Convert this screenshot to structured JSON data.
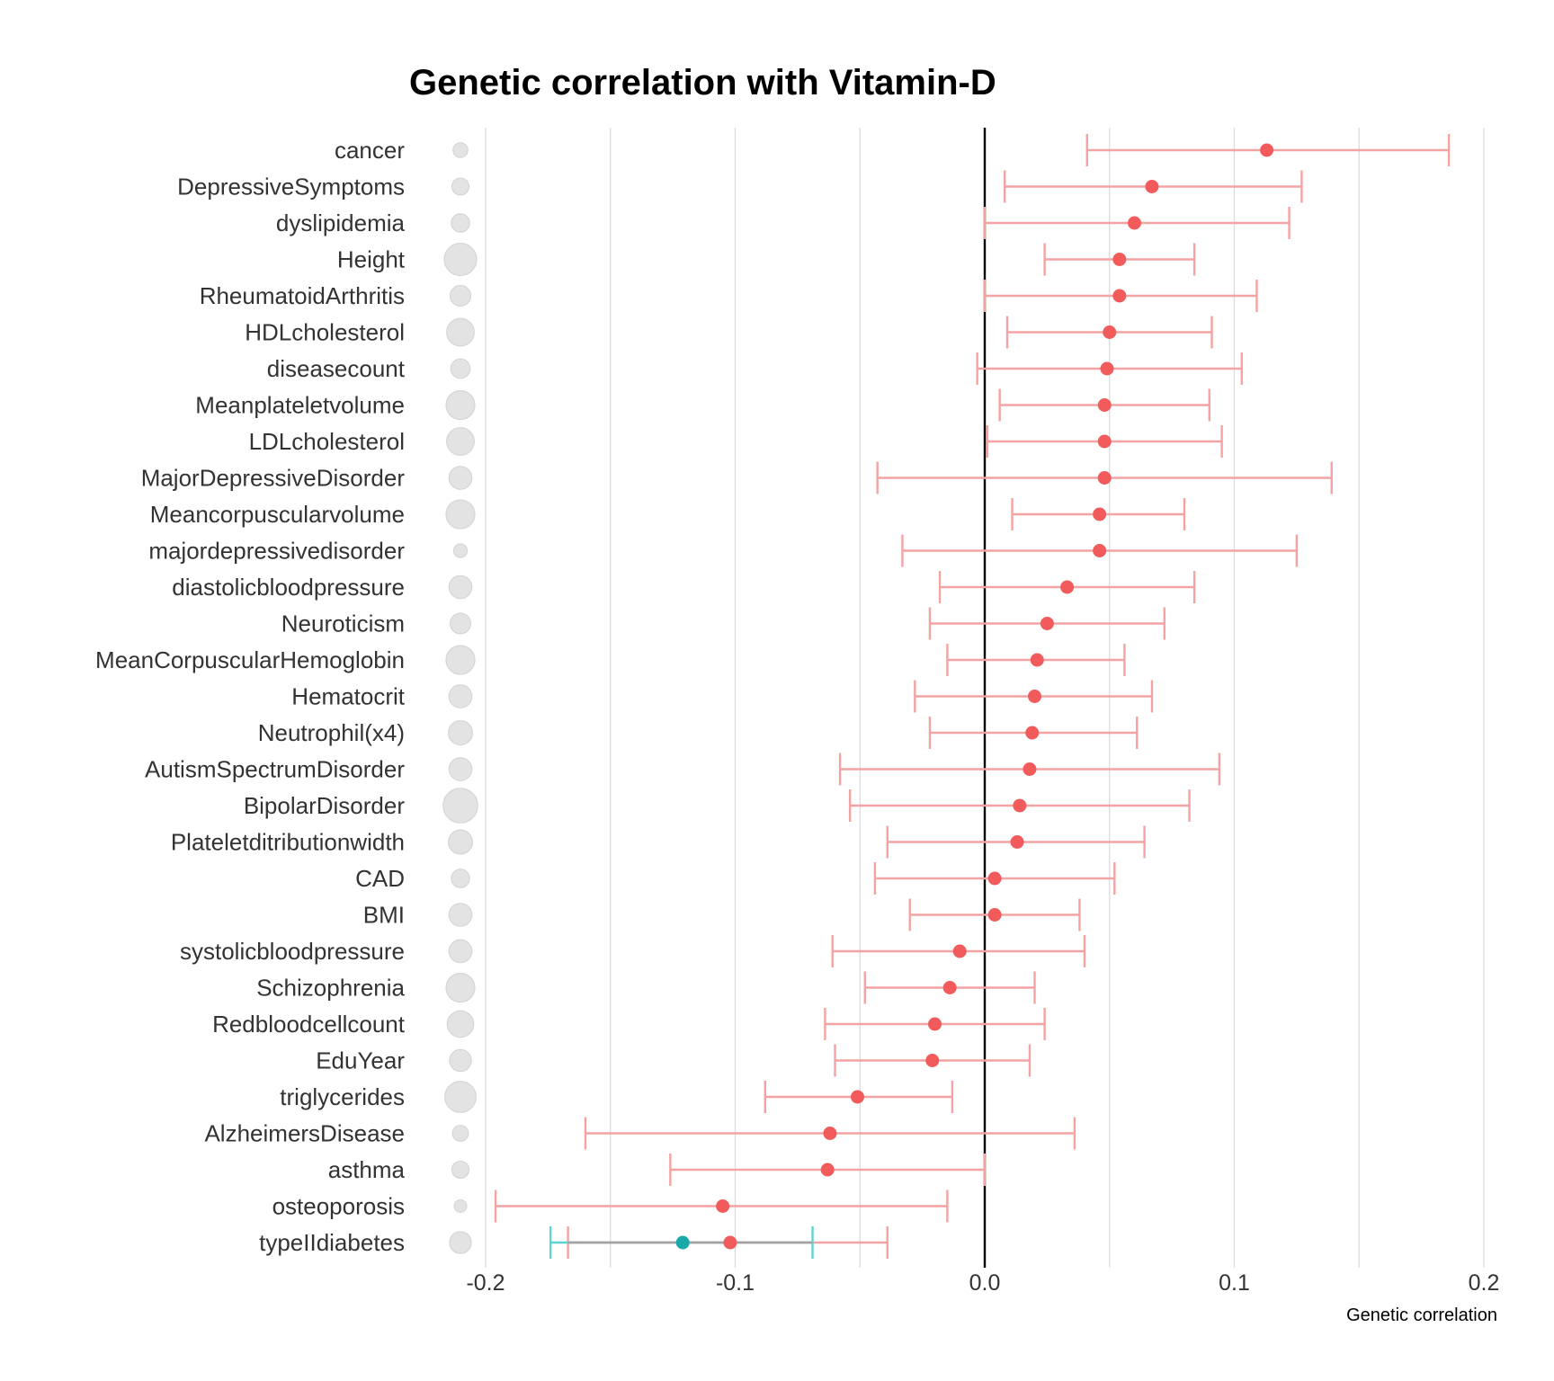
{
  "chart_data": {
    "type": "scatter",
    "title": "Genetic correlation with Vitamin-D",
    "xlabel": "Genetic correlation",
    "ylabel": "",
    "xlim": [
      -0.2,
      0.2
    ],
    "xticks": [
      -0.2,
      -0.1,
      0.0,
      0.1,
      0.2
    ],
    "xtick_labels": [
      "-0.2",
      "-0.1",
      "0.0",
      "0.1",
      "0.2"
    ],
    "grid": true,
    "point_color": "#f15b5b",
    "ci_color": "#f4a3a3",
    "highlight_point_color": "#19a9a9",
    "highlight_ci_color": "#5fd4d4",
    "size_marker_color": "#e3e3e3",
    "traits": [
      {
        "name": "cancer",
        "rg": 0.113,
        "lo": 0.041,
        "hi": 0.186,
        "size": 0.25
      },
      {
        "name": "DepressiveSymptoms",
        "rg": 0.067,
        "lo": 0.008,
        "hi": 0.127,
        "size": 0.35
      },
      {
        "name": "dyslipidemia",
        "rg": 0.06,
        "lo": 0.0,
        "hi": 0.122,
        "size": 0.4
      },
      {
        "name": "Height",
        "rg": 0.054,
        "lo": 0.024,
        "hi": 0.084,
        "size": 1.0
      },
      {
        "name": "RheumatoidArthritis",
        "rg": 0.054,
        "lo": 0.0,
        "hi": 0.109,
        "size": 0.5
      },
      {
        "name": "HDLcholesterol",
        "rg": 0.05,
        "lo": 0.009,
        "hi": 0.091,
        "size": 0.8
      },
      {
        "name": "diseasecount",
        "rg": 0.049,
        "lo": -0.003,
        "hi": 0.103,
        "size": 0.45
      },
      {
        "name": "Meanplateletvolume",
        "rg": 0.048,
        "lo": 0.006,
        "hi": 0.09,
        "size": 0.85
      },
      {
        "name": "LDLcholesterol",
        "rg": 0.048,
        "lo": 0.001,
        "hi": 0.095,
        "size": 0.8
      },
      {
        "name": "MajorDepressiveDisorder",
        "rg": 0.048,
        "lo": -0.043,
        "hi": 0.139,
        "size": 0.6
      },
      {
        "name": "Meancorpuscularvolume",
        "rg": 0.046,
        "lo": 0.011,
        "hi": 0.08,
        "size": 0.85
      },
      {
        "name": "majordepressivedisorder",
        "rg": 0.046,
        "lo": -0.033,
        "hi": 0.125,
        "size": 0.2
      },
      {
        "name": "diastolicbloodpressure",
        "rg": 0.033,
        "lo": -0.018,
        "hi": 0.084,
        "size": 0.6
      },
      {
        "name": "Neuroticism",
        "rg": 0.025,
        "lo": -0.022,
        "hi": 0.072,
        "size": 0.5
      },
      {
        "name": "MeanCorpuscularHemoglobin",
        "rg": 0.021,
        "lo": -0.015,
        "hi": 0.056,
        "size": 0.85
      },
      {
        "name": "Hematocrit",
        "rg": 0.02,
        "lo": -0.028,
        "hi": 0.067,
        "size": 0.6
      },
      {
        "name": "Neutrophil(x4)",
        "rg": 0.019,
        "lo": -0.022,
        "hi": 0.061,
        "size": 0.65
      },
      {
        "name": "AutismSpectrumDisorder",
        "rg": 0.018,
        "lo": -0.058,
        "hi": 0.094,
        "size": 0.6
      },
      {
        "name": "BipolarDisorder",
        "rg": 0.014,
        "lo": -0.054,
        "hi": 0.082,
        "size": 1.1
      },
      {
        "name": "Plateletditributionwidth",
        "rg": 0.013,
        "lo": -0.039,
        "hi": 0.064,
        "size": 0.65
      },
      {
        "name": "CAD",
        "rg": 0.004,
        "lo": -0.044,
        "hi": 0.052,
        "size": 0.4
      },
      {
        "name": "BMI",
        "rg": 0.004,
        "lo": -0.03,
        "hi": 0.038,
        "size": 0.6
      },
      {
        "name": "systolicbloodpressure",
        "rg": -0.01,
        "lo": -0.061,
        "hi": 0.04,
        "size": 0.6
      },
      {
        "name": "Schizophrenia",
        "rg": -0.014,
        "lo": -0.048,
        "hi": 0.02,
        "size": 0.85
      },
      {
        "name": "Redbloodcellcount",
        "rg": -0.02,
        "lo": -0.064,
        "hi": 0.024,
        "size": 0.75
      },
      {
        "name": "EduYear",
        "rg": -0.021,
        "lo": -0.06,
        "hi": 0.018,
        "size": 0.55
      },
      {
        "name": "triglycerides",
        "rg": -0.051,
        "lo": -0.088,
        "hi": -0.013,
        "size": 0.95
      },
      {
        "name": "AlzheimersDisease",
        "rg": -0.062,
        "lo": -0.16,
        "hi": 0.036,
        "size": 0.3
      },
      {
        "name": "asthma",
        "rg": -0.063,
        "lo": -0.126,
        "hi": 0.0,
        "size": 0.35
      },
      {
        "name": "osteoporosis",
        "rg": -0.105,
        "lo": -0.196,
        "hi": -0.015,
        "size": 0.15
      },
      {
        "name": "typeIIdiabetes",
        "rg": -0.102,
        "lo": -0.167,
        "hi": -0.039,
        "size": 0.55,
        "secondary": {
          "rg": -0.121,
          "lo": -0.174,
          "hi": -0.069
        }
      }
    ]
  }
}
